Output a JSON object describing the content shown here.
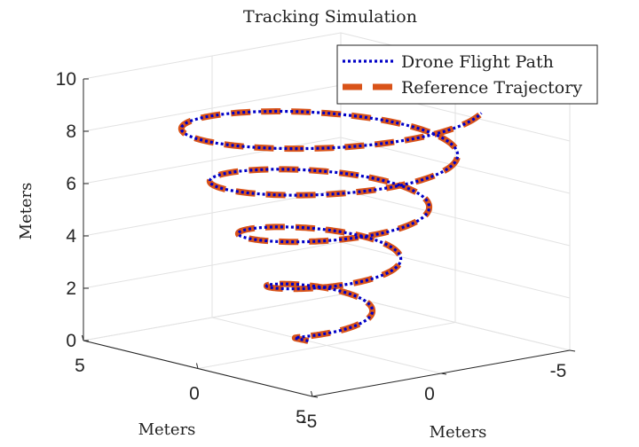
{
  "chart_data": {
    "type": "line",
    "projection": "3d",
    "title": "Tracking Simulation",
    "xlabel": "Meters",
    "ylabel": "Meters",
    "zlabel": "Meters",
    "xlim": [
      -5,
      5
    ],
    "ylim": [
      -5,
      5
    ],
    "zlim": [
      0,
      10
    ],
    "x_ticks": [
      "-5",
      "0",
      "5"
    ],
    "y_ticks": [
      "-5",
      "0",
      "5"
    ],
    "z_ticks": [
      "0",
      "2",
      "4",
      "6",
      "8",
      "10"
    ],
    "grid": true,
    "legend_position": "top-right",
    "helix": {
      "z_start": 0,
      "z_end": 9.2,
      "turns": 4.6,
      "radius_start": 0.8,
      "radius_end": 4.6,
      "start_angle_deg": 0
    },
    "series": [
      {
        "name": "Drone Flight Path",
        "color": "#0000c8",
        "line_style": "dotted"
      },
      {
        "name": "Reference Trajectory",
        "color": "#d95319",
        "line_style": "dashed"
      }
    ]
  }
}
